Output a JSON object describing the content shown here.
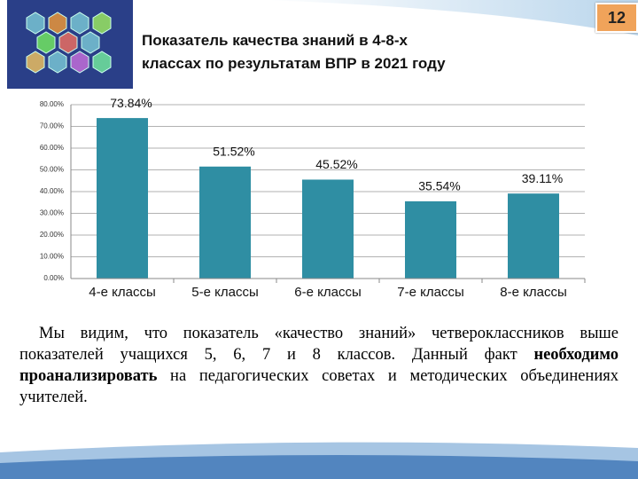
{
  "slide_number": "12",
  "title_lines": [
    "Показатель качества знаний в 4-8-х",
    "классах по результатам ВПР в 2021 году"
  ],
  "chart_data": {
    "type": "bar",
    "categories": [
      "4-е классы",
      "5-е классы",
      "6-е классы",
      "7-е классы",
      "8-е классы"
    ],
    "values": [
      73.84,
      51.52,
      45.52,
      35.54,
      39.11
    ],
    "value_labels": [
      "73.84%",
      "51.52%",
      "45.52%",
      "35.54%",
      "39.11%"
    ],
    "color": "#2f8ea3",
    "ylim": [
      0,
      80
    ],
    "yticks": [
      {
        "value": 0,
        "label": "0.00%"
      },
      {
        "value": 10,
        "label": "10.00%"
      },
      {
        "value": 20,
        "label": "20.00%"
      },
      {
        "value": 30,
        "label": "30.00%"
      },
      {
        "value": 40,
        "label": "40.00%"
      },
      {
        "value": 50,
        "label": "50.00%"
      },
      {
        "value": 60,
        "label": "60.00%"
      },
      {
        "value": 70,
        "label": "70.00%"
      },
      {
        "value": 80,
        "label": "80.00%"
      }
    ],
    "grid": true
  },
  "paragraph": [
    "Мы видим, что показатель «качество знаний» четвероклассников выше показателей учащихся 5, 6, 7 и 8 классов. Данный факт ",
    "необходимо проанализировать",
    " на педагогических советах и методических объединениях учителей."
  ]
}
